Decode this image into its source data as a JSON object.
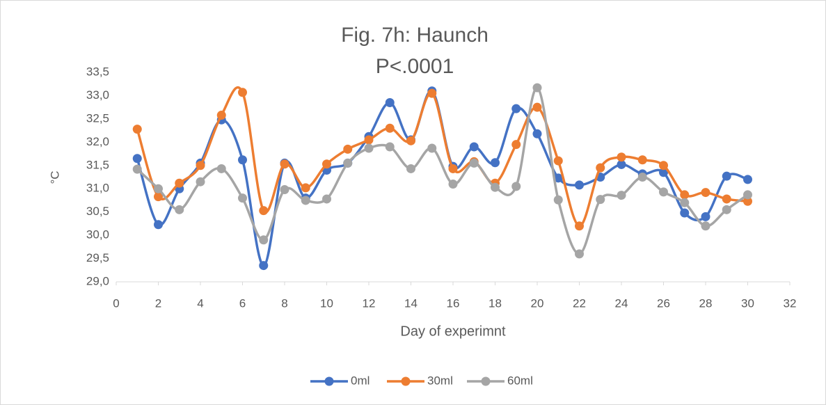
{
  "chart_data": {
    "type": "line",
    "title": "Fig. 7h: Haunch",
    "subtitle": "P<.0001",
    "x_label": "Day of experimnt",
    "y_label": "°C",
    "x": [
      1,
      2,
      3,
      4,
      5,
      6,
      7,
      8,
      9,
      10,
      11,
      12,
      13,
      14,
      15,
      16,
      17,
      18,
      19,
      20,
      21,
      22,
      23,
      24,
      25,
      26,
      27,
      28,
      29,
      30
    ],
    "series": [
      {
        "name": "0ml",
        "color": "#4472c4",
        "values": [
          31.65,
          30.23,
          31.0,
          31.55,
          32.48,
          31.62,
          29.35,
          31.55,
          30.8,
          31.4,
          31.55,
          32.12,
          32.85,
          32.05,
          33.1,
          31.48,
          31.9,
          31.56,
          32.72,
          32.18,
          31.23,
          31.08,
          31.25,
          31.52,
          31.32,
          31.35,
          30.48,
          30.4,
          31.27,
          31.2
        ]
      },
      {
        "name": "30ml",
        "color": "#ed7d31",
        "values": [
          32.28,
          30.83,
          31.12,
          31.5,
          32.58,
          33.07,
          30.53,
          31.53,
          31.02,
          31.53,
          31.85,
          32.05,
          32.3,
          32.03,
          33.05,
          31.43,
          31.58,
          31.12,
          31.95,
          32.75,
          31.6,
          30.2,
          31.45,
          31.68,
          31.62,
          31.5,
          30.87,
          30.92,
          30.78,
          30.73
        ]
      },
      {
        "name": "60ml",
        "color": "#a5a5a5",
        "values": [
          31.42,
          31.0,
          30.55,
          31.15,
          31.43,
          30.8,
          29.9,
          30.98,
          30.75,
          30.78,
          31.55,
          31.87,
          31.9,
          31.43,
          31.87,
          31.1,
          31.55,
          31.03,
          31.05,
          33.17,
          30.76,
          29.6,
          30.77,
          30.86,
          31.25,
          30.93,
          30.7,
          30.2,
          30.55,
          30.87
        ]
      }
    ],
    "xlim": [
      0,
      32
    ],
    "xticks": [
      0,
      2,
      4,
      6,
      8,
      10,
      12,
      14,
      16,
      18,
      20,
      22,
      24,
      26,
      28,
      30,
      32
    ],
    "ylim": [
      29,
      33.5
    ],
    "yticks": [
      {
        "value": 29,
        "label": "29,0"
      },
      {
        "value": 29.5,
        "label": "29,5"
      },
      {
        "value": 30,
        "label": "30,0"
      },
      {
        "value": 30.5,
        "label": "30,5"
      },
      {
        "value": 31,
        "label": "31,0"
      },
      {
        "value": 31.5,
        "label": "31,5"
      },
      {
        "value": 32,
        "label": "32,0"
      },
      {
        "value": 32.5,
        "label": "32,5"
      },
      {
        "value": 33,
        "label": "33,0"
      },
      {
        "value": 33.5,
        "label": "33,5"
      }
    ],
    "smooth": true,
    "grid": false,
    "legend": "bottom"
  }
}
